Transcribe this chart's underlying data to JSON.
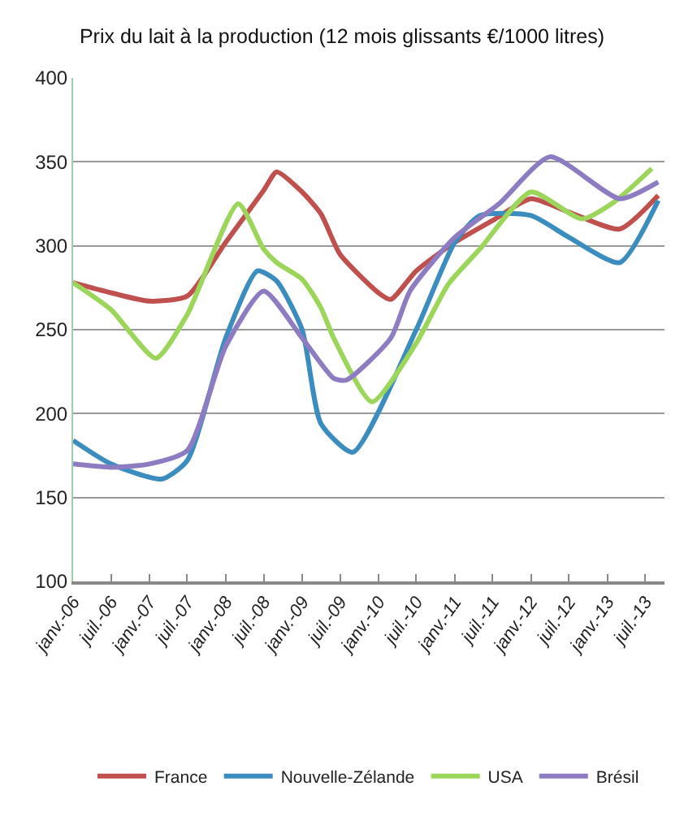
{
  "chart_data": {
    "type": "line",
    "title": "Prix du lait à la production (12 mois glissants €/1000 litres)",
    "xlim": [
      "2006-01",
      "2013-10"
    ],
    "xticks": [
      {
        "value": "2006-01",
        "label": "janv.-06"
      },
      {
        "value": "2006-07",
        "label": "juil.-06"
      },
      {
        "value": "2007-01",
        "label": "janv.-07"
      },
      {
        "value": "2007-07",
        "label": "juil.-07"
      },
      {
        "value": "2008-01",
        "label": "janv.-08"
      },
      {
        "value": "2008-07",
        "label": "juil.-08"
      },
      {
        "value": "2009-01",
        "label": "janv.-09"
      },
      {
        "value": "2009-07",
        "label": "juil.-09"
      },
      {
        "value": "2010-01",
        "label": "janv.-10"
      },
      {
        "value": "2010-07",
        "label": "juil.-10"
      },
      {
        "value": "2011-01",
        "label": "janv.-11"
      },
      {
        "value": "2011-07",
        "label": "juil.-11"
      },
      {
        "value": "2012-01",
        "label": "janv.-12"
      },
      {
        "value": "2012-07",
        "label": "juil.-12"
      },
      {
        "value": "2013-01",
        "label": "janv.-13"
      },
      {
        "value": "2013-07",
        "label": "juil.-13"
      }
    ],
    "ylim": [
      100,
      400
    ],
    "yticks": [
      100,
      150,
      200,
      250,
      300,
      350,
      400
    ],
    "grid": "y",
    "legend": "bottom",
    "marker": "none",
    "line_style": "solid",
    "series": [
      {
        "name": "France",
        "color": "#c0504d",
        "x": [
          "2006-01",
          "2006-07",
          "2007-01",
          "2007-07",
          "2008-01",
          "2008-07",
          "2008-09",
          "2009-01",
          "2009-04",
          "2009-07",
          "2010-01",
          "2010-03",
          "2010-07",
          "2011-01",
          "2011-07",
          "2012-01",
          "2012-07",
          "2013-03",
          "2013-09"
        ],
        "values": [
          278,
          272,
          267,
          270,
          302,
          333,
          344,
          332,
          319,
          295,
          272,
          268,
          285,
          302,
          315,
          328,
          320,
          310,
          330
        ]
      },
      {
        "name": "Nouvelle-Zélande",
        "color": "#3c8dbf",
        "x": [
          "2006-01",
          "2006-07",
          "2007-03",
          "2007-07",
          "2008-01",
          "2008-06",
          "2008-09",
          "2009-01",
          "2009-04",
          "2009-09",
          "2010-07",
          "2011-01",
          "2011-05",
          "2012-01",
          "2012-07",
          "2013-03",
          "2013-09"
        ],
        "values": [
          184,
          170,
          161,
          172,
          245,
          285,
          279,
          250,
          194,
          177,
          250,
          302,
          318,
          318,
          305,
          290,
          327
        ]
      },
      {
        "name": "USA",
        "color": "#9bd55a",
        "x": [
          "2006-01",
          "2006-07",
          "2007-02",
          "2007-07",
          "2008-03",
          "2008-07",
          "2008-09",
          "2009-01",
          "2009-04",
          "2009-06",
          "2009-12",
          "2010-07",
          "2010-12",
          "2011-05",
          "2012-01",
          "2012-09",
          "2013-02",
          "2013-08"
        ],
        "values": [
          278,
          262,
          233,
          259,
          325,
          298,
          290,
          280,
          263,
          245,
          207,
          242,
          277,
          298,
          332,
          316,
          326,
          346
        ]
      },
      {
        "name": "Brésil",
        "color": "#8e7cc3",
        "x": [
          "2006-01",
          "2006-07",
          "2007-01",
          "2007-07",
          "2008-01",
          "2008-07",
          "2009-01",
          "2009-06",
          "2009-08",
          "2010-03",
          "2010-06",
          "2011-01",
          "2011-08",
          "2012-04",
          "2013-03",
          "2013-09"
        ],
        "values": [
          170,
          168,
          170,
          178,
          240,
          273,
          245,
          221,
          220,
          245,
          273,
          305,
          325,
          353,
          328,
          338
        ]
      }
    ]
  }
}
